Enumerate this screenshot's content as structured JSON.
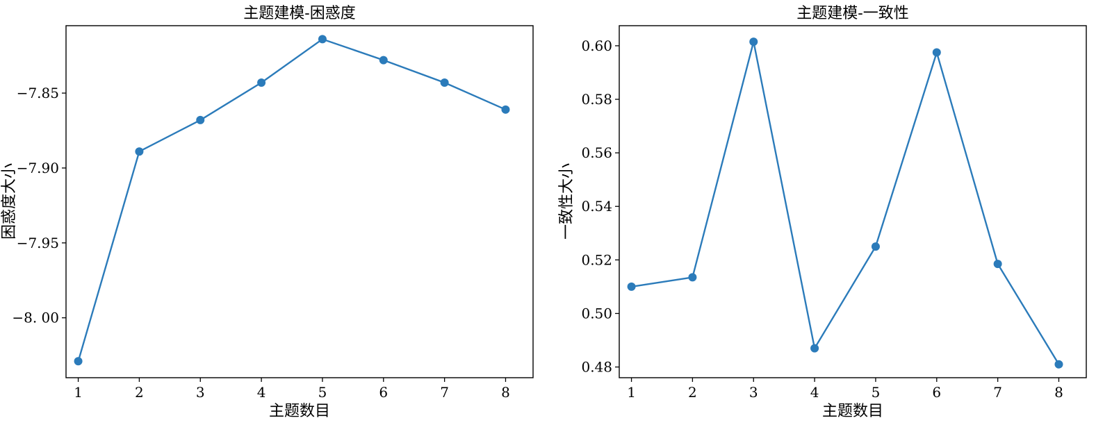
{
  "page": {
    "left_chart": {
      "title": "主题建模-困惑度",
      "xlabel": "主题数目",
      "ylabel": "困惑度大小",
      "x_tick_labels": [
        "1",
        "2",
        "3",
        "4",
        "5",
        "6",
        "7",
        "8"
      ],
      "y_tick_labels": [
        "−7.85",
        "−7.90",
        "−7.95",
        "−8. 00"
      ]
    },
    "right_chart": {
      "title": "主题建模-一致性",
      "xlabel": "主题数目",
      "ylabel": "一致性大小",
      "x_tick_labels": [
        "1",
        "2",
        "3",
        "4",
        "5",
        "6",
        "7",
        "8"
      ],
      "y_tick_labels": [
        "0.60",
        "0.58",
        "0.56",
        "0.54",
        "0.52",
        "0.50",
        "0.48"
      ]
    }
  },
  "colors": {
    "series": "#2b7bba"
  },
  "chart_data": [
    {
      "type": "line",
      "title": "主题建模-困惑度",
      "xlabel": "主题数目",
      "ylabel": "困惑度大小",
      "x": [
        1,
        2,
        3,
        4,
        5,
        6,
        7,
        8
      ],
      "y": [
        -8.029,
        -7.889,
        -7.868,
        -7.843,
        -7.814,
        -7.828,
        -7.843,
        -7.861
      ],
      "yticks": [
        -7.85,
        -7.9,
        -7.95,
        -8.0
      ],
      "ylim": [
        -8.04,
        -7.805
      ],
      "xlim": [
        0.8,
        8.45
      ],
      "grid": false,
      "marker": "circle"
    },
    {
      "type": "line",
      "title": "主题建模-一致性",
      "xlabel": "主题数目",
      "ylabel": "一致性大小",
      "x": [
        1,
        2,
        3,
        4,
        5,
        6,
        7,
        8
      ],
      "y": [
        0.51,
        0.5135,
        0.6015,
        0.487,
        0.525,
        0.5975,
        0.5185,
        0.481
      ],
      "yticks": [
        0.6,
        0.58,
        0.56,
        0.54,
        0.52,
        0.5,
        0.48
      ],
      "ylim": [
        0.476,
        0.6075
      ],
      "xlim": [
        0.8,
        8.45
      ],
      "grid": false,
      "marker": "circle"
    }
  ]
}
